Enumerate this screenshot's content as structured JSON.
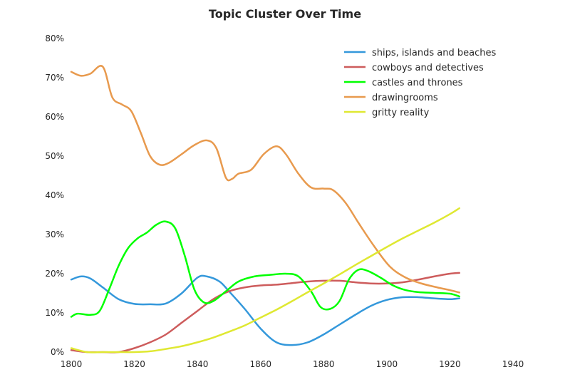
{
  "chart_data": {
    "type": "line",
    "title": "Topic Cluster Over Time",
    "xlabel": "",
    "ylabel": "",
    "xlim": [
      1800,
      1940
    ],
    "ylim": [
      0,
      0.8
    ],
    "x_ticks": [
      1800,
      1820,
      1840,
      1860,
      1880,
      1900,
      1920,
      1940
    ],
    "y_ticks": [
      "0%",
      "10%",
      "20%",
      "30%",
      "40%",
      "50%",
      "60%",
      "70%",
      "80%"
    ],
    "grid": false,
    "legend_position": "top-right",
    "series": [
      {
        "name": "ships, islands and beaches",
        "color": "#3498db",
        "points": [
          [
            1800,
            0.185
          ],
          [
            1803,
            0.193
          ],
          [
            1806,
            0.188
          ],
          [
            1810,
            0.165
          ],
          [
            1815,
            0.135
          ],
          [
            1820,
            0.123
          ],
          [
            1825,
            0.122
          ],
          [
            1830,
            0.124
          ],
          [
            1835,
            0.15
          ],
          [
            1840,
            0.19
          ],
          [
            1843,
            0.193
          ],
          [
            1847,
            0.18
          ],
          [
            1850,
            0.155
          ],
          [
            1855,
            0.11
          ],
          [
            1860,
            0.06
          ],
          [
            1865,
            0.025
          ],
          [
            1870,
            0.018
          ],
          [
            1875,
            0.025
          ],
          [
            1880,
            0.045
          ],
          [
            1885,
            0.07
          ],
          [
            1890,
            0.095
          ],
          [
            1895,
            0.118
          ],
          [
            1900,
            0.133
          ],
          [
            1905,
            0.14
          ],
          [
            1910,
            0.14
          ],
          [
            1915,
            0.137
          ],
          [
            1920,
            0.135
          ],
          [
            1923,
            0.137
          ]
        ]
      },
      {
        "name": "cowboys and detectives",
        "color": "#cd5c5c",
        "points": [
          [
            1800,
            0.005
          ],
          [
            1805,
            0.0
          ],
          [
            1810,
            0.0
          ],
          [
            1815,
            0.0
          ],
          [
            1820,
            0.01
          ],
          [
            1825,
            0.025
          ],
          [
            1830,
            0.045
          ],
          [
            1835,
            0.075
          ],
          [
            1840,
            0.105
          ],
          [
            1845,
            0.135
          ],
          [
            1850,
            0.155
          ],
          [
            1855,
            0.165
          ],
          [
            1860,
            0.17
          ],
          [
            1865,
            0.172
          ],
          [
            1870,
            0.176
          ],
          [
            1875,
            0.18
          ],
          [
            1880,
            0.182
          ],
          [
            1885,
            0.182
          ],
          [
            1890,
            0.178
          ],
          [
            1895,
            0.175
          ],
          [
            1900,
            0.175
          ],
          [
            1905,
            0.178
          ],
          [
            1910,
            0.185
          ],
          [
            1915,
            0.193
          ],
          [
            1920,
            0.2
          ],
          [
            1923,
            0.202
          ]
        ]
      },
      {
        "name": "castles and thrones",
        "color": "#00ff00",
        "points": [
          [
            1800,
            0.09
          ],
          [
            1802,
            0.098
          ],
          [
            1806,
            0.095
          ],
          [
            1809,
            0.105
          ],
          [
            1812,
            0.16
          ],
          [
            1815,
            0.22
          ],
          [
            1818,
            0.265
          ],
          [
            1821,
            0.29
          ],
          [
            1824,
            0.305
          ],
          [
            1827,
            0.325
          ],
          [
            1830,
            0.333
          ],
          [
            1833,
            0.315
          ],
          [
            1836,
            0.245
          ],
          [
            1839,
            0.16
          ],
          [
            1842,
            0.127
          ],
          [
            1845,
            0.13
          ],
          [
            1849,
            0.155
          ],
          [
            1853,
            0.18
          ],
          [
            1858,
            0.193
          ],
          [
            1863,
            0.197
          ],
          [
            1868,
            0.2
          ],
          [
            1872,
            0.193
          ],
          [
            1876,
            0.155
          ],
          [
            1879,
            0.115
          ],
          [
            1882,
            0.11
          ],
          [
            1885,
            0.13
          ],
          [
            1888,
            0.185
          ],
          [
            1891,
            0.21
          ],
          [
            1894,
            0.207
          ],
          [
            1898,
            0.19
          ],
          [
            1902,
            0.17
          ],
          [
            1906,
            0.158
          ],
          [
            1910,
            0.153
          ],
          [
            1915,
            0.151
          ],
          [
            1920,
            0.149
          ],
          [
            1923,
            0.142
          ]
        ]
      },
      {
        "name": "drawingrooms",
        "color": "#e89a4e",
        "points": [
          [
            1800,
            0.715
          ],
          [
            1803,
            0.705
          ],
          [
            1806,
            0.71
          ],
          [
            1810,
            0.728
          ],
          [
            1813,
            0.65
          ],
          [
            1816,
            0.632
          ],
          [
            1819,
            0.615
          ],
          [
            1822,
            0.56
          ],
          [
            1825,
            0.5
          ],
          [
            1828,
            0.478
          ],
          [
            1831,
            0.483
          ],
          [
            1835,
            0.505
          ],
          [
            1839,
            0.528
          ],
          [
            1843,
            0.54
          ],
          [
            1846,
            0.52
          ],
          [
            1849,
            0.445
          ],
          [
            1851,
            0.442
          ],
          [
            1853,
            0.455
          ],
          [
            1857,
            0.465
          ],
          [
            1861,
            0.505
          ],
          [
            1865,
            0.525
          ],
          [
            1868,
            0.505
          ],
          [
            1872,
            0.455
          ],
          [
            1876,
            0.42
          ],
          [
            1880,
            0.417
          ],
          [
            1883,
            0.413
          ],
          [
            1887,
            0.38
          ],
          [
            1891,
            0.33
          ],
          [
            1896,
            0.27
          ],
          [
            1901,
            0.218
          ],
          [
            1906,
            0.19
          ],
          [
            1911,
            0.175
          ],
          [
            1916,
            0.165
          ],
          [
            1920,
            0.158
          ],
          [
            1923,
            0.152
          ]
        ]
      },
      {
        "name": "gritty reality",
        "color": "#dfe832",
        "points": [
          [
            1800,
            0.01
          ],
          [
            1805,
            0.0
          ],
          [
            1810,
            0.0
          ],
          [
            1815,
            0.0
          ],
          [
            1820,
            0.0
          ],
          [
            1825,
            0.002
          ],
          [
            1830,
            0.008
          ],
          [
            1835,
            0.015
          ],
          [
            1840,
            0.025
          ],
          [
            1845,
            0.037
          ],
          [
            1850,
            0.052
          ],
          [
            1855,
            0.068
          ],
          [
            1860,
            0.088
          ],
          [
            1865,
            0.108
          ],
          [
            1870,
            0.13
          ],
          [
            1875,
            0.153
          ],
          [
            1880,
            0.175
          ],
          [
            1885,
            0.198
          ],
          [
            1890,
            0.222
          ],
          [
            1895,
            0.245
          ],
          [
            1900,
            0.268
          ],
          [
            1905,
            0.29
          ],
          [
            1910,
            0.31
          ],
          [
            1915,
            0.33
          ],
          [
            1920,
            0.352
          ],
          [
            1923,
            0.367
          ]
        ]
      }
    ]
  }
}
